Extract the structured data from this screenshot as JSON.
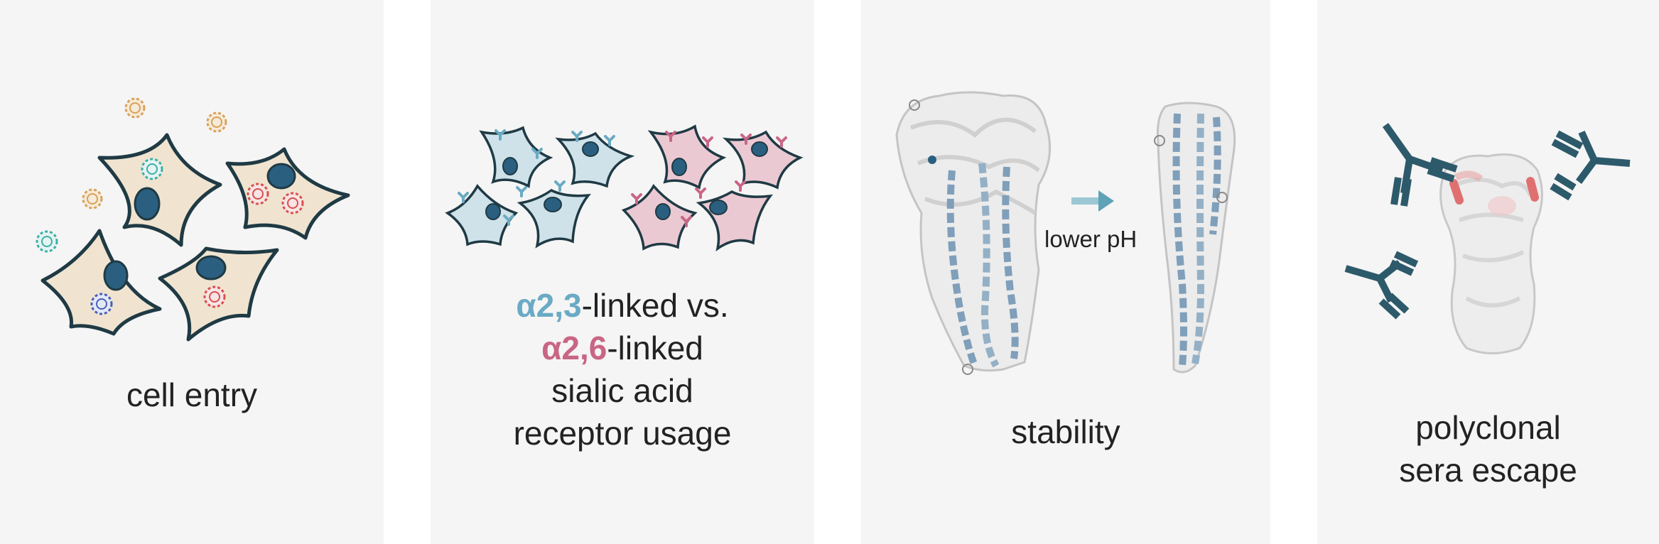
{
  "colors": {
    "panel_bg": "#f5f5f5",
    "cell_beige": "#f0e4d0",
    "nucleus": "#2a5f80",
    "outline": "#1f3a44",
    "blue_cell": "#cfe2ea",
    "pink_cell": "#ebc9d3",
    "alpha23": "#6aaac4",
    "alpha26": "#c96685",
    "antibody": "#2d5a6b",
    "escape_red": "#e07070",
    "arrow": "#5ea2b8"
  },
  "panels": [
    {
      "id": "cell-entry",
      "caption": [
        "cell entry"
      ]
    },
    {
      "id": "receptor-usage",
      "caption_parts": {
        "a23": "α2,3",
        "a23_suffix": "-linked vs.",
        "a26": "α2,6",
        "a26_suffix": "-linked",
        "line3": "sialic acid",
        "line4": "receptor usage"
      }
    },
    {
      "id": "stability",
      "caption": [
        "stability"
      ],
      "arrow_label": "lower pH"
    },
    {
      "id": "sera-escape",
      "caption": [
        "polyclonal",
        "sera escape"
      ]
    }
  ],
  "icons": {
    "virus": "virus-icon",
    "cell": "cell-icon",
    "receptor": "sialic-receptor-icon",
    "protein": "hemagglutinin-structure-icon",
    "antibody": "antibody-icon",
    "arrow": "arrow-right-icon"
  }
}
